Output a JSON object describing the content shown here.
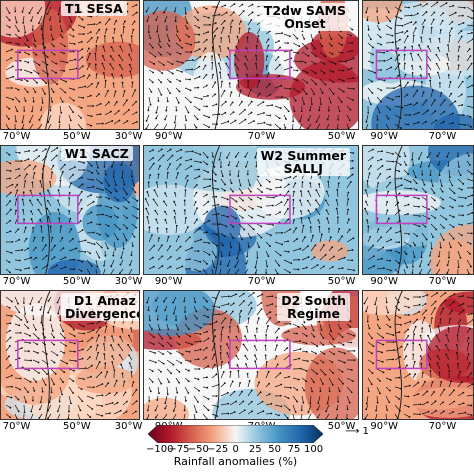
{
  "panels": [
    {
      "id": "p11",
      "title_lines": [
        "T1 SESA"
      ],
      "lon_labels": [
        "70°W",
        "50°W",
        "30°W"
      ],
      "theme": "warm"
    },
    {
      "id": "p12",
      "title_lines": [
        "T2dw SAMS",
        "Onset"
      ],
      "lon_labels": [
        "90°W",
        "70°W",
        "50°W"
      ],
      "theme": "mixed"
    },
    {
      "id": "p13",
      "title_lines": [],
      "lon_labels": [
        "90°W",
        "70°W"
      ],
      "theme": "cool"
    },
    {
      "id": "p21",
      "title_lines": [
        "W1 SACZ"
      ],
      "lon_labels": [
        "70°W",
        "50°W",
        "30°W"
      ],
      "theme": "cool"
    },
    {
      "id": "p22",
      "title_lines": [
        "W2 Summer",
        "SALLJ"
      ],
      "lon_labels": [
        "90°W",
        "70°W",
        "50°W"
      ],
      "theme": "cool"
    },
    {
      "id": "p23",
      "title_lines": [],
      "lon_labels": [
        "90°W",
        "70°W"
      ],
      "theme": "cool"
    },
    {
      "id": "p31",
      "title_lines": [
        "D1 Amaz",
        "Divergence"
      ],
      "lon_labels": [
        "70°W",
        "50°W",
        "30°W"
      ],
      "theme": "warm"
    },
    {
      "id": "p32",
      "title_lines": [
        "D2 South",
        "Regime"
      ],
      "lon_labels": [
        "90°W",
        "70°W",
        "50°W"
      ],
      "theme": "mixed"
    },
    {
      "id": "p33",
      "title_lines": [],
      "lon_labels": [
        "90°W",
        "70°W"
      ],
      "theme": "warm"
    }
  ],
  "colorbar": {
    "ticks": [
      "−100",
      "−75",
      "−50",
      "−25",
      "0",
      "25",
      "50",
      "75",
      "100"
    ],
    "label": "Rainfall anomalies (%)",
    "colors": [
      "#67001f",
      "#b2182b",
      "#d6604d",
      "#f4a582",
      "#f7f7f7",
      "#92c5de",
      "#4393c3",
      "#2166ac",
      "#053061"
    ]
  },
  "reference_vector": {
    "label": "1"
  },
  "box_color": "#c040c0"
}
